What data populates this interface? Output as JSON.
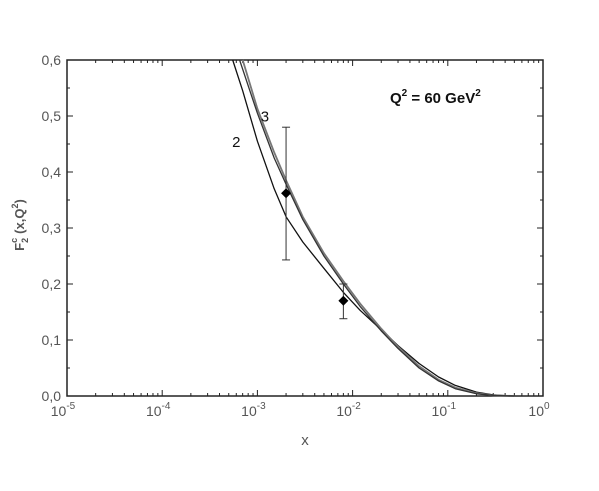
{
  "chart_data": {
    "type": "line",
    "xscale": "log",
    "xlim": [
      1e-05,
      1
    ],
    "ylim": [
      0,
      0.6
    ],
    "xlabel": "x",
    "ylabel": {
      "main": "F",
      "sup": "c",
      "sub": "2",
      "args": "(x,Q",
      "args_sup": "2",
      "args_close": ")"
    },
    "annotation": {
      "base": "Q",
      "exp1": "2",
      "mid": " = 60 GeV",
      "exp2": "2"
    },
    "x_ticks": [
      {
        "base": "10",
        "exp": "-5"
      },
      {
        "base": "10",
        "exp": "-4"
      },
      {
        "base": "10",
        "exp": "-3"
      },
      {
        "base": "10",
        "exp": "-2"
      },
      {
        "base": "10",
        "exp": "-1"
      },
      {
        "base": "10",
        "exp": "0"
      }
    ],
    "x_tick_values": [
      1e-05,
      0.0001,
      0.001,
      0.01,
      0.1,
      1
    ],
    "y_ticks": [
      "0,0",
      "0,1",
      "0,2",
      "0,3",
      "0,4",
      "0,5",
      "0,6"
    ],
    "y_tick_values": [
      0,
      0.1,
      0.2,
      0.3,
      0.4,
      0.5,
      0.6
    ],
    "series": [
      {
        "name": "2",
        "color": "#111111",
        "x": [
          0.00055,
          0.0007,
          0.001,
          0.0015,
          0.002,
          0.003,
          0.005,
          0.008,
          0.012,
          0.02,
          0.03,
          0.05,
          0.08,
          0.12,
          0.2,
          0.3,
          0.45
        ],
        "y": [
          0.6,
          0.545,
          0.455,
          0.37,
          0.32,
          0.275,
          0.228,
          0.185,
          0.153,
          0.118,
          0.09,
          0.058,
          0.034,
          0.019,
          0.007,
          0.002,
          0.0
        ]
      },
      {
        "name": "3",
        "color": "#777777",
        "x": [
          0.0007,
          0.001,
          0.0015,
          0.002,
          0.003,
          0.005,
          0.008,
          0.012,
          0.02,
          0.03,
          0.05,
          0.08,
          0.12,
          0.2,
          0.3,
          0.5
        ],
        "y": [
          0.6,
          0.513,
          0.435,
          0.385,
          0.32,
          0.255,
          0.205,
          0.165,
          0.12,
          0.088,
          0.053,
          0.029,
          0.015,
          0.005,
          0.001,
          0.0
        ]
      },
      {
        "name": "",
        "color": "#333333",
        "x": [
          0.00065,
          0.001,
          0.0015,
          0.002,
          0.003,
          0.005,
          0.008,
          0.012,
          0.02,
          0.03,
          0.05,
          0.08,
          0.12,
          0.2,
          0.3,
          0.5
        ],
        "y": [
          0.6,
          0.505,
          0.425,
          0.378,
          0.315,
          0.25,
          0.2,
          0.16,
          0.116,
          0.085,
          0.05,
          0.027,
          0.013,
          0.004,
          0.001,
          0.0
        ]
      }
    ],
    "points": [
      {
        "x": 0.002,
        "y": 0.362,
        "err_low": 0.243,
        "err_high": 0.48
      },
      {
        "x": 0.008,
        "y": 0.17,
        "err_low": 0.138,
        "err_high": 0.2
      }
    ],
    "curve_labels": [
      {
        "text": "3",
        "x": 0.0012,
        "y": 0.49
      },
      {
        "text": "2",
        "x": 0.0006,
        "y": 0.445
      }
    ]
  }
}
